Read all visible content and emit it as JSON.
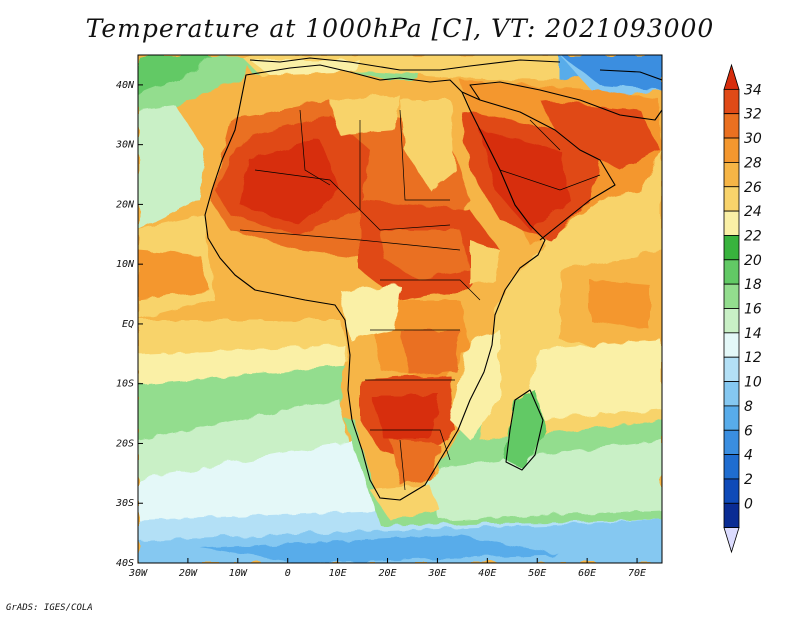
{
  "title": "Temperature at 1000hPa [C], VT: 2021093000",
  "credit": "GrADS: IGES/COLA",
  "map": {
    "lat_ticks": [
      "40N",
      "30N",
      "20N",
      "10N",
      "EQ",
      "10S",
      "20S",
      "30S",
      "40S"
    ],
    "lon_ticks": [
      "30W",
      "20W",
      "10W",
      "0",
      "10E",
      "20E",
      "30E",
      "40E",
      "50E",
      "60E",
      "70E"
    ],
    "lon_range": [
      -30,
      75
    ],
    "lat_range": [
      -40,
      45
    ]
  },
  "colorbar": {
    "labels": [
      "34",
      "32",
      "30",
      "28",
      "26",
      "24",
      "22",
      "20",
      "18",
      "16",
      "14",
      "12",
      "10",
      "8",
      "6",
      "4",
      "2",
      "0"
    ],
    "colors": [
      "#d72d0d",
      "#e04a17",
      "#ea7020",
      "#f4972e",
      "#f6b546",
      "#f8d36b",
      "#faf0a6",
      "#38b33d",
      "#62c965",
      "#93dd8e",
      "#c9f0c6",
      "#e4f8f8",
      "#b3e0f6",
      "#85c8f1",
      "#58acea",
      "#3a8ee0",
      "#1f6dd0",
      "#0f4ab8",
      "#0a2c94",
      "#08196a"
    ]
  }
}
